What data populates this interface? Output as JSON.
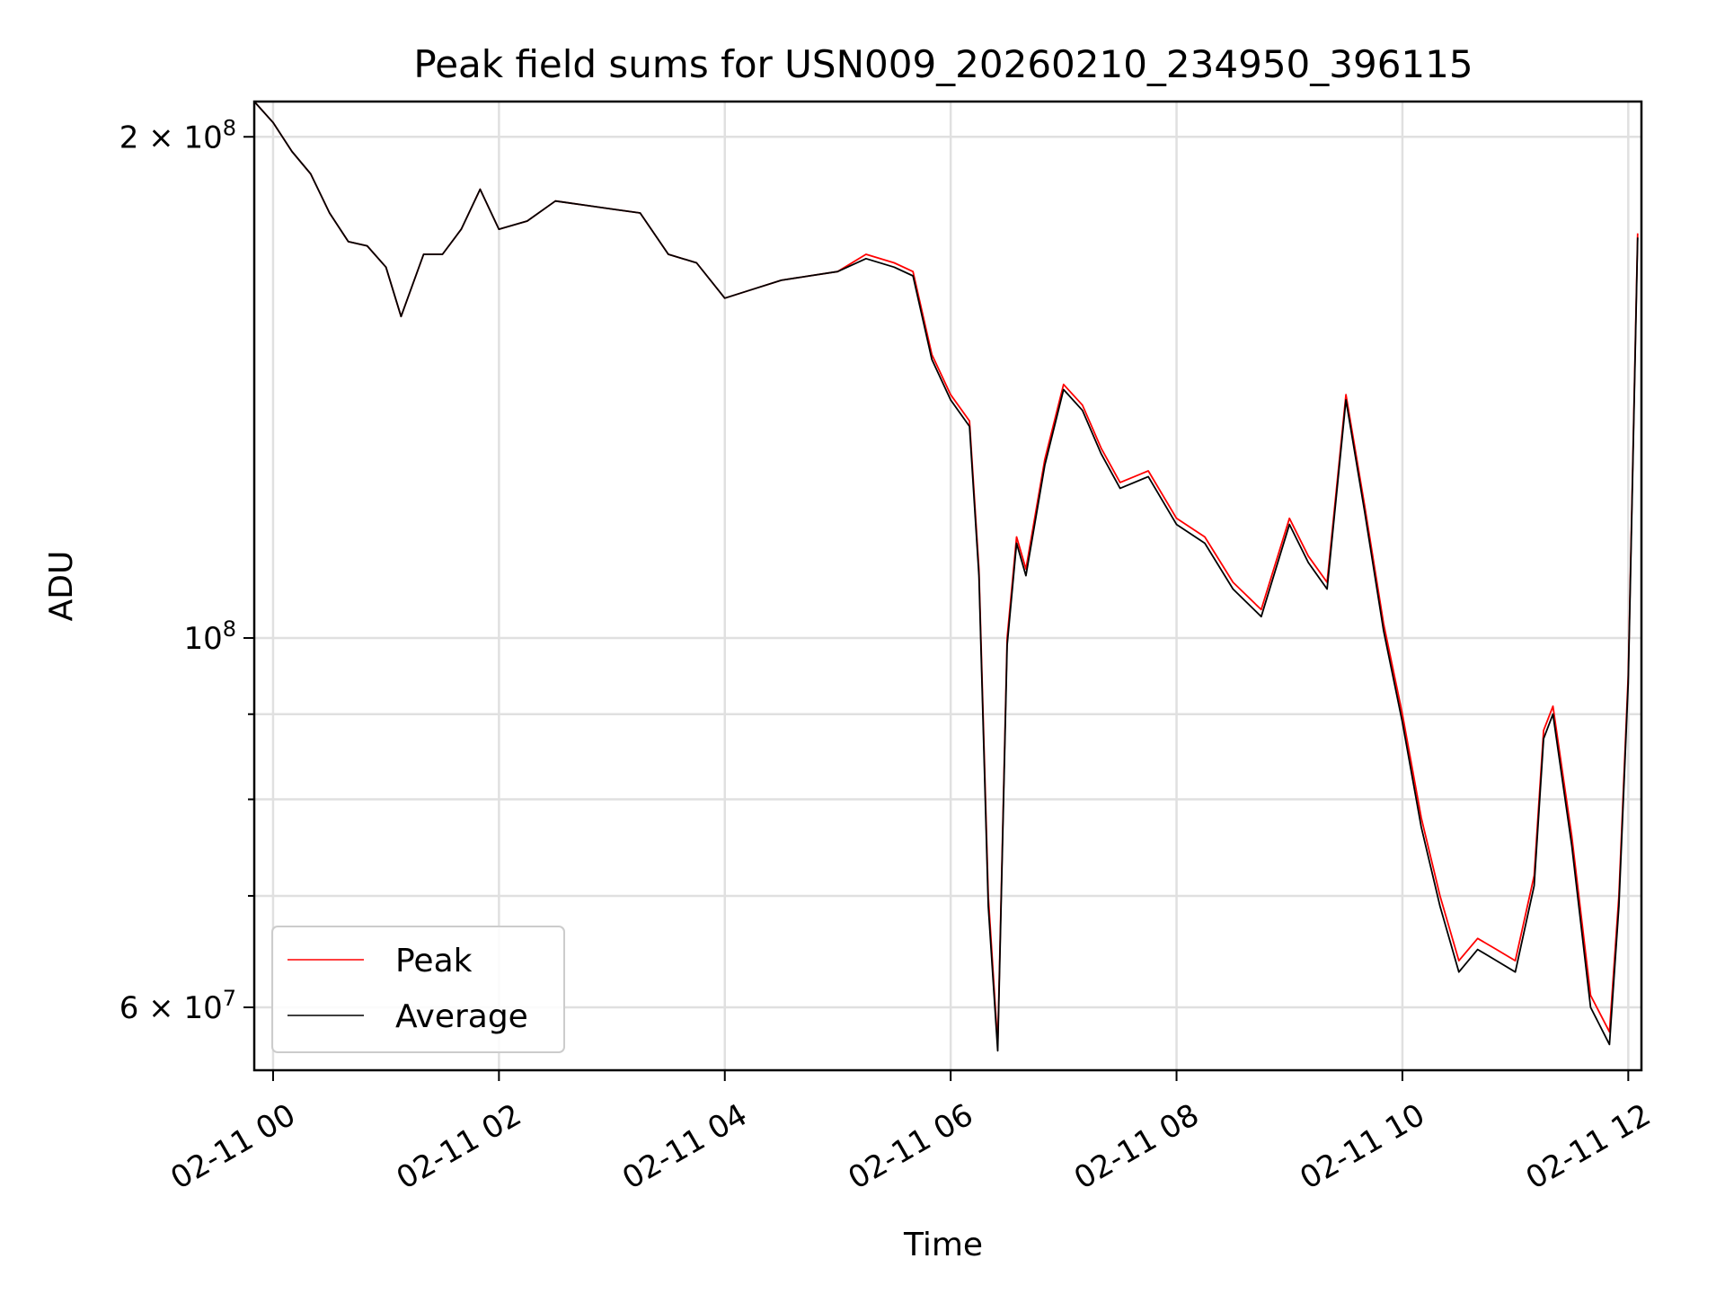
{
  "chart_data": {
    "type": "line",
    "title": "Peak field sums for USN009_20260210_234950_396115",
    "xlabel": "Time",
    "ylabel": "ADU",
    "xlim": [
      "2026-02-10T23:50",
      "2026-02-11T12:07"
    ],
    "ylim": [
      55000000,
      210000000
    ],
    "yscale": "log",
    "grid": true,
    "legend_position": "lower left",
    "x_ticks": [
      {
        "value": "2026-02-11T00:00",
        "label": "02-11 00"
      },
      {
        "value": "2026-02-11T02:00",
        "label": "02-11 02"
      },
      {
        "value": "2026-02-11T04:00",
        "label": "02-11 04"
      },
      {
        "value": "2026-02-11T06:00",
        "label": "02-11 06"
      },
      {
        "value": "2026-02-11T08:00",
        "label": "02-11 08"
      },
      {
        "value": "2026-02-11T10:00",
        "label": "02-11 10"
      },
      {
        "value": "2026-02-11T12:00",
        "label": "02-11 12"
      }
    ],
    "y_ticks_major": [
      {
        "value": 60000000,
        "base": "6 × 10",
        "exp": "7"
      },
      {
        "value": 100000000,
        "base": "10",
        "exp": "8"
      },
      {
        "value": 200000000,
        "base": "2 × 10",
        "exp": "8"
      }
    ],
    "y_ticks_minor": [
      70000000,
      80000000,
      90000000
    ],
    "series": [
      {
        "name": "Peak",
        "color": "#ff0000",
        "x": [
          "2026-02-10T23:50",
          "2026-02-11T00:00",
          "2026-02-11T00:10",
          "2026-02-11T00:20",
          "2026-02-11T00:30",
          "2026-02-11T00:40",
          "2026-02-11T00:50",
          "2026-02-11T01:00",
          "2026-02-11T01:08",
          "2026-02-11T01:20",
          "2026-02-11T01:30",
          "2026-02-11T01:40",
          "2026-02-11T01:50",
          "2026-02-11T02:00",
          "2026-02-11T02:15",
          "2026-02-11T02:30",
          "2026-02-11T02:45",
          "2026-02-11T03:00",
          "2026-02-11T03:15",
          "2026-02-11T03:30",
          "2026-02-11T03:45",
          "2026-02-11T04:00",
          "2026-02-11T04:15",
          "2026-02-11T04:30",
          "2026-02-11T04:45",
          "2026-02-11T05:00",
          "2026-02-11T05:15",
          "2026-02-11T05:30",
          "2026-02-11T05:40",
          "2026-02-11T05:50",
          "2026-02-11T06:00",
          "2026-02-11T06:10",
          "2026-02-11T06:15",
          "2026-02-11T06:20",
          "2026-02-11T06:25",
          "2026-02-11T06:30",
          "2026-02-11T06:35",
          "2026-02-11T06:40",
          "2026-02-11T06:50",
          "2026-02-11T07:00",
          "2026-02-11T07:10",
          "2026-02-11T07:20",
          "2026-02-11T07:30",
          "2026-02-11T07:45",
          "2026-02-11T08:00",
          "2026-02-11T08:15",
          "2026-02-11T08:30",
          "2026-02-11T08:45",
          "2026-02-11T09:00",
          "2026-02-11T09:10",
          "2026-02-11T09:20",
          "2026-02-11T09:30",
          "2026-02-11T09:40",
          "2026-02-11T09:50",
          "2026-02-11T10:00",
          "2026-02-11T10:10",
          "2026-02-11T10:20",
          "2026-02-11T10:30",
          "2026-02-11T10:40",
          "2026-02-11T10:50",
          "2026-02-11T11:00",
          "2026-02-11T11:10",
          "2026-02-11T11:15",
          "2026-02-11T11:20",
          "2026-02-11T11:30",
          "2026-02-11T11:40",
          "2026-02-11T11:50",
          "2026-02-11T11:55",
          "2026-02-11T12:00",
          "2026-02-11T12:05"
        ],
        "values": [
          210000000,
          204000000,
          196000000,
          190000000,
          180000000,
          173000000,
          172000000,
          167000000,
          156000000,
          170000000,
          170000000,
          176000000,
          186000000,
          176000000,
          178000000,
          183000000,
          182000000,
          181000000,
          180000000,
          170000000,
          168000000,
          160000000,
          162000000,
          164000000,
          165000000,
          166000000,
          170000000,
          168000000,
          166000000,
          148000000,
          140000000,
          135000000,
          110000000,
          70000000,
          57000000,
          100000000,
          115000000,
          110000000,
          128000000,
          142000000,
          138000000,
          130000000,
          124000000,
          126000000,
          118000000,
          115000000,
          108000000,
          104000000,
          118000000,
          112000000,
          108000000,
          140000000,
          120000000,
          102000000,
          90000000,
          78000000,
          70000000,
          64000000,
          66000000,
          65000000,
          64000000,
          72000000,
          88000000,
          91000000,
          76000000,
          61000000,
          58000000,
          70000000,
          95000000,
          175000000
        ]
      },
      {
        "name": "Average",
        "color": "#000000",
        "x": [
          "2026-02-10T23:50",
          "2026-02-11T00:00",
          "2026-02-11T00:10",
          "2026-02-11T00:20",
          "2026-02-11T00:30",
          "2026-02-11T00:40",
          "2026-02-11T00:50",
          "2026-02-11T01:00",
          "2026-02-11T01:08",
          "2026-02-11T01:20",
          "2026-02-11T01:30",
          "2026-02-11T01:40",
          "2026-02-11T01:50",
          "2026-02-11T02:00",
          "2026-02-11T02:15",
          "2026-02-11T02:30",
          "2026-02-11T02:45",
          "2026-02-11T03:00",
          "2026-02-11T03:15",
          "2026-02-11T03:30",
          "2026-02-11T03:45",
          "2026-02-11T04:00",
          "2026-02-11T04:15",
          "2026-02-11T04:30",
          "2026-02-11T04:45",
          "2026-02-11T05:00",
          "2026-02-11T05:15",
          "2026-02-11T05:30",
          "2026-02-11T05:40",
          "2026-02-11T05:50",
          "2026-02-11T06:00",
          "2026-02-11T06:10",
          "2026-02-11T06:15",
          "2026-02-11T06:20",
          "2026-02-11T06:25",
          "2026-02-11T06:30",
          "2026-02-11T06:35",
          "2026-02-11T06:40",
          "2026-02-11T06:50",
          "2026-02-11T07:00",
          "2026-02-11T07:10",
          "2026-02-11T07:20",
          "2026-02-11T07:30",
          "2026-02-11T07:45",
          "2026-02-11T08:00",
          "2026-02-11T08:15",
          "2026-02-11T08:30",
          "2026-02-11T08:45",
          "2026-02-11T09:00",
          "2026-02-11T09:10",
          "2026-02-11T09:20",
          "2026-02-11T09:30",
          "2026-02-11T09:40",
          "2026-02-11T09:50",
          "2026-02-11T10:00",
          "2026-02-11T10:10",
          "2026-02-11T10:20",
          "2026-02-11T10:30",
          "2026-02-11T10:40",
          "2026-02-11T10:50",
          "2026-02-11T11:00",
          "2026-02-11T11:10",
          "2026-02-11T11:15",
          "2026-02-11T11:20",
          "2026-02-11T11:30",
          "2026-02-11T11:40",
          "2026-02-11T11:50",
          "2026-02-11T11:55",
          "2026-02-11T12:00",
          "2026-02-11T12:05"
        ],
        "values": [
          210000000,
          204000000,
          196000000,
          190000000,
          180000000,
          173000000,
          172000000,
          167000000,
          156000000,
          170000000,
          170000000,
          176000000,
          186000000,
          176000000,
          178000000,
          183000000,
          182000000,
          181000000,
          180000000,
          170000000,
          168000000,
          160000000,
          162000000,
          164000000,
          165000000,
          166000000,
          169000000,
          167000000,
          165000000,
          147000000,
          139000000,
          134000000,
          109000000,
          69000000,
          56500000,
          99000000,
          114000000,
          109000000,
          127000000,
          141000000,
          137000000,
          129000000,
          123000000,
          125000000,
          117000000,
          114000000,
          107000000,
          103000000,
          117000000,
          111000000,
          107000000,
          139000000,
          119000000,
          101000000,
          89000000,
          77000000,
          69000000,
          63000000,
          65000000,
          64000000,
          63000000,
          71000000,
          87000000,
          90000000,
          75000000,
          60000000,
          57000000,
          69000000,
          94000000,
          174000000
        ]
      }
    ]
  }
}
